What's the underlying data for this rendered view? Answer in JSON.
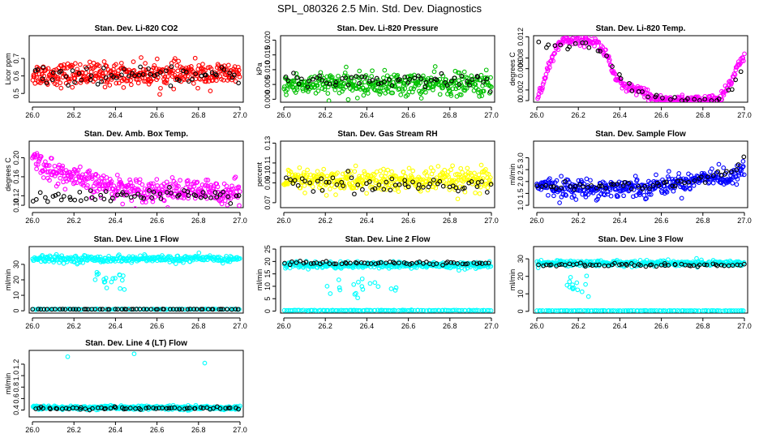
{
  "figure_title": "SPL_080326  2.5 Min. Std. Dev. Diagnostics",
  "colors": {
    "red": "#ff0000",
    "green": "#00c000",
    "magenta": "#ff00ff",
    "yellow": "#ffff00",
    "blue": "#0000ff",
    "cyan": "#00ffff",
    "black": "#000000"
  },
  "chart_data": [
    {
      "type": "scatter",
      "title": "Stan. Dev. Li-820 CO2",
      "ylabel": "Licor ppm",
      "xlim": [
        26.0,
        27.0
      ],
      "ylim": [
        0.45,
        0.83
      ],
      "xticks": [
        "26.0",
        "26.2",
        "26.4",
        "26.6",
        "26.8",
        "27.0"
      ],
      "yticks": [
        {
          "v": 0.5,
          "label": "0.5"
        },
        {
          "v": 0.6,
          "label": "0.6"
        },
        {
          "v": 0.7,
          "label": "0.7"
        }
      ],
      "series": [
        {
          "name": "all",
          "color": "red",
          "model": "band",
          "baseline": 0.61,
          "spread": 0.06,
          "n": 380
        },
        {
          "name": "selected",
          "color": "black",
          "model": "band",
          "baseline": 0.6,
          "spread": 0.04,
          "n": 60
        }
      ]
    },
    {
      "type": "scatter",
      "title": "Stan. Dev. Li-820 Pressure",
      "ylabel": "kPa",
      "xlim": [
        26.0,
        27.0
      ],
      "ylim": [
        -0.001,
        0.0215
      ],
      "xticks": [
        "26.0",
        "26.2",
        "26.4",
        "26.6",
        "26.8",
        "27.0"
      ],
      "yticks": [
        {
          "v": 0,
          "label": "0.000"
        },
        {
          "v": 0.005,
          "label": "0.005"
        },
        {
          "v": 0.01,
          "label": "0.010"
        },
        {
          "v": 0.015,
          "label": "0.015"
        },
        {
          "v": 0.02,
          "label": "0.020"
        }
      ],
      "series": [
        {
          "name": "all",
          "color": "green",
          "model": "band",
          "baseline": 0.005,
          "spread": 0.0035,
          "n": 380
        },
        {
          "name": "selected",
          "color": "black",
          "model": "band",
          "baseline": 0.0065,
          "spread": 0.0025,
          "n": 60
        }
      ]
    },
    {
      "type": "scatter",
      "title": "Stan. Dev. Li-820 Temp.",
      "ylabel": "degrees C",
      "xlim": [
        26.0,
        27.0
      ],
      "ylim": [
        -0.0003,
        0.0122
      ],
      "xticks": [
        "26.0",
        "26.2",
        "26.4",
        "26.6",
        "26.8",
        "27.0"
      ],
      "yticks": [
        {
          "v": 0,
          "label": "0"
        },
        {
          "v": 0.002,
          "label": "0.002"
        },
        {
          "v": 0.006,
          "label": "0.006"
        },
        {
          "v": 0.008,
          "label": "0.008"
        },
        {
          "v": 0.012,
          "label": "0.012"
        }
      ],
      "series": [
        {
          "name": "all",
          "color": "magenta",
          "model": "profile",
          "profile": [
            [
              26.0,
              0.0
            ],
            [
              26.06,
              0.0065
            ],
            [
              26.1,
              0.0105
            ],
            [
              26.14,
              0.0115
            ],
            [
              26.2,
              0.0115
            ],
            [
              26.28,
              0.0112
            ],
            [
              26.34,
              0.0085
            ],
            [
              26.38,
              0.004
            ],
            [
              26.42,
              0.0025
            ],
            [
              26.5,
              0.0018
            ],
            [
              26.55,
              0.0005
            ],
            [
              26.62,
              0.0
            ],
            [
              26.88,
              0.0
            ],
            [
              26.93,
              0.003
            ],
            [
              26.97,
              0.007
            ],
            [
              27.0,
              0.0085
            ]
          ],
          "spread": 0.0009,
          "n": 340
        },
        {
          "name": "selected",
          "color": "black",
          "model": "profile",
          "profile": [
            [
              26.1,
              0.0105
            ],
            [
              26.3,
              0.0102
            ],
            [
              26.36,
              0.007
            ],
            [
              26.42,
              0.003
            ],
            [
              26.5,
              0.0015
            ],
            [
              26.62,
              0.0
            ],
            [
              26.9,
              0.0
            ],
            [
              26.96,
              0.004
            ],
            [
              27.0,
              0.007
            ]
          ],
          "spread": 0.0006,
          "n": 40
        }
      ]
    },
    {
      "type": "scatter",
      "title": "Stan. Dev. Amb. Box Temp.",
      "ylabel": "degrees C",
      "xlim": [
        26.0,
        27.0
      ],
      "ylim": [
        0.095,
        0.235
      ],
      "xticks": [
        "26.0",
        "26.2",
        "26.4",
        "26.6",
        "26.8",
        "27.0"
      ],
      "yticks": [
        {
          "v": 0.1,
          "label": "0.10"
        },
        {
          "v": 0.12,
          "label": "0.12"
        },
        {
          "v": 0.16,
          "label": "0.16"
        },
        {
          "v": 0.2,
          "label": "0.20"
        }
      ],
      "series": [
        {
          "name": "all",
          "color": "magenta",
          "model": "profile",
          "profile": [
            [
              26.0,
              0.2
            ],
            [
              26.1,
              0.17
            ],
            [
              26.3,
              0.145
            ],
            [
              26.5,
              0.133
            ],
            [
              26.7,
              0.13
            ],
            [
              27.0,
              0.128
            ]
          ],
          "spread": 0.022,
          "n": 380
        },
        {
          "name": "selected",
          "color": "black",
          "model": "band",
          "baseline": 0.12,
          "spread": 0.012,
          "n": 60
        }
      ]
    },
    {
      "type": "scatter",
      "title": "Stan. Dev. Gas Stream RH",
      "ylabel": "percent",
      "xlim": [
        26.0,
        27.0
      ],
      "ylim": [
        0.065,
        0.132
      ],
      "xticks": [
        "26.0",
        "26.2",
        "26.4",
        "26.6",
        "26.8",
        "27.0"
      ],
      "yticks": [
        {
          "v": 0.07,
          "label": "0.07"
        },
        {
          "v": 0.09,
          "label": "0.09"
        },
        {
          "v": 0.1,
          "label": "0.10"
        },
        {
          "v": 0.11,
          "label": "0.11"
        },
        {
          "v": 0.13,
          "label": "0.13"
        }
      ],
      "series": [
        {
          "name": "all",
          "color": "yellow",
          "model": "band",
          "baseline": 0.092,
          "spread": 0.011,
          "n": 380
        },
        {
          "name": "selected",
          "color": "black",
          "model": "band",
          "baseline": 0.088,
          "spread": 0.008,
          "n": 60
        }
      ]
    },
    {
      "type": "scatter",
      "title": "Stan. Dev. Sample Flow",
      "ylabel": "ml/min",
      "xlim": [
        26.0,
        27.0
      ],
      "ylim": [
        0.9,
        3.7
      ],
      "xticks": [
        "26.0",
        "26.2",
        "26.4",
        "26.6",
        "26.8",
        "27.0"
      ],
      "yticks": [
        {
          "v": 1.0,
          "label": "1.0"
        },
        {
          "v": 1.5,
          "label": "1.5"
        },
        {
          "v": 2.0,
          "label": "2.0"
        },
        {
          "v": 2.5,
          "label": "2.5"
        },
        {
          "v": 3.0,
          "label": "3.0"
        }
      ],
      "series": [
        {
          "name": "all",
          "color": "blue",
          "model": "profile",
          "profile": [
            [
              26.0,
              1.8
            ],
            [
              26.2,
              1.7
            ],
            [
              26.5,
              1.75
            ],
            [
              26.7,
              1.95
            ],
            [
              26.85,
              2.3
            ],
            [
              26.93,
              2.0
            ],
            [
              27.0,
              2.7
            ]
          ],
          "spread": 0.35,
          "n": 380
        },
        {
          "name": "selected",
          "color": "black",
          "model": "profile",
          "profile": [
            [
              26.0,
              1.8
            ],
            [
              26.5,
              1.8
            ],
            [
              26.8,
              2.1
            ],
            [
              26.95,
              2.4
            ],
            [
              27.0,
              3.0
            ]
          ],
          "spread": 0.2,
          "n": 55
        }
      ]
    },
    {
      "type": "scatter",
      "title": "Stan. Dev. Line 1 Flow",
      "ylabel": "ml/min",
      "xlim": [
        26.0,
        27.0
      ],
      "ylim": [
        -1.5,
        41.5
      ],
      "xticks": [
        "26.0",
        "26.2",
        "26.4",
        "26.6",
        "26.8",
        "27.0"
      ],
      "yticks": [
        {
          "v": 0,
          "label": "0"
        },
        {
          "v": 10,
          "label": "10"
        },
        {
          "v": 20,
          "label": "20"
        },
        {
          "v": 30,
          "label": "30"
        }
      ],
      "series": [
        {
          "name": "upper",
          "color": "cyan",
          "model": "band",
          "baseline": 33.5,
          "spread": 2.0,
          "n": 300
        },
        {
          "name": "baseline",
          "color": "cyan",
          "model": "band",
          "baseline": 1.0,
          "spread": 0.2,
          "n": 110
        },
        {
          "name": "dips",
          "color": "cyan",
          "model": "band",
          "baseline": 19.0,
          "spread": 7.0,
          "n": 18,
          "xrange": [
            26.3,
            26.45
          ]
        },
        {
          "name": "selected",
          "color": "black",
          "model": "band",
          "baseline": 1.0,
          "spread": 0.1,
          "n": 60
        }
      ]
    },
    {
      "type": "scatter",
      "title": "Stan. Dev. Line 2 Flow",
      "ylabel": "ml/min",
      "xlim": [
        26.0,
        27.0
      ],
      "ylim": [
        -0.8,
        26.0
      ],
      "xticks": [
        "26.0",
        "26.2",
        "26.4",
        "26.6",
        "26.8",
        "27.0"
      ],
      "yticks": [
        {
          "v": 0,
          "label": "0"
        },
        {
          "v": 5,
          "label": "5"
        },
        {
          "v": 10,
          "label": "10"
        },
        {
          "v": 15,
          "label": "15"
        },
        {
          "v": 20,
          "label": "20"
        },
        {
          "v": 25,
          "label": "25"
        }
      ],
      "series": [
        {
          "name": "upper",
          "color": "cyan",
          "model": "band",
          "baseline": 18.5,
          "spread": 1.2,
          "n": 320
        },
        {
          "name": "baseline",
          "color": "cyan",
          "model": "band",
          "baseline": 0.3,
          "spread": 0.1,
          "n": 110
        },
        {
          "name": "dips",
          "color": "cyan",
          "model": "band",
          "baseline": 10.0,
          "spread": 5.5,
          "n": 20,
          "xrange": [
            26.15,
            26.55
          ]
        },
        {
          "name": "selected",
          "color": "black",
          "model": "band",
          "baseline": 19.3,
          "spread": 0.6,
          "n": 60
        }
      ]
    },
    {
      "type": "scatter",
      "title": "Stan. Dev. Line 3 Flow",
      "ylabel": "ml/min",
      "xlim": [
        26.0,
        27.0
      ],
      "ylim": [
        -1.0,
        37.0
      ],
      "xticks": [
        "26.0",
        "26.2",
        "26.4",
        "26.6",
        "26.8",
        "27.0"
      ],
      "yticks": [
        {
          "v": 0,
          "label": "0"
        },
        {
          "v": 10,
          "label": "10"
        },
        {
          "v": 20,
          "label": "20"
        },
        {
          "v": 30,
          "label": "30"
        }
      ],
      "series": [
        {
          "name": "upper",
          "color": "cyan",
          "model": "band",
          "baseline": 27.5,
          "spread": 1.5,
          "n": 320
        },
        {
          "name": "baseline",
          "color": "cyan",
          "model": "band",
          "baseline": 0.4,
          "spread": 0.1,
          "n": 110
        },
        {
          "name": "dips",
          "color": "cyan",
          "model": "band",
          "baseline": 16.0,
          "spread": 6.0,
          "n": 14,
          "xrange": [
            26.12,
            26.25
          ]
        },
        {
          "name": "selected",
          "color": "black",
          "model": "band",
          "baseline": 26.5,
          "spread": 0.7,
          "n": 60
        }
      ]
    },
    {
      "type": "scatter",
      "title": "Stan. Dev. Line 4 (LT) Flow",
      "ylabel": "ml/min",
      "xlim": [
        26.0,
        27.0
      ],
      "ylim": [
        0.28,
        1.44
      ],
      "xticks": [
        "26.0",
        "26.2",
        "26.4",
        "26.6",
        "26.8",
        "27.0"
      ],
      "yticks": [
        {
          "v": 0.4,
          "label": "0.4"
        },
        {
          "v": 0.6,
          "label": "0.6"
        },
        {
          "v": 0.8,
          "label": "0.8"
        },
        {
          "v": 1.0,
          "label": "1.0"
        },
        {
          "v": 1.2,
          "label": "1.2"
        }
      ],
      "series": [
        {
          "name": "all",
          "color": "cyan",
          "model": "band",
          "baseline": 0.44,
          "spread": 0.03,
          "n": 360
        },
        {
          "name": "outliers",
          "color": "cyan",
          "model": "points",
          "points": [
            [
              26.17,
              1.33
            ],
            [
              26.49,
              1.38
            ],
            [
              26.83,
              1.22
            ]
          ]
        },
        {
          "name": "selected",
          "color": "black",
          "model": "band",
          "baseline": 0.43,
          "spread": 0.02,
          "n": 60
        }
      ]
    }
  ]
}
